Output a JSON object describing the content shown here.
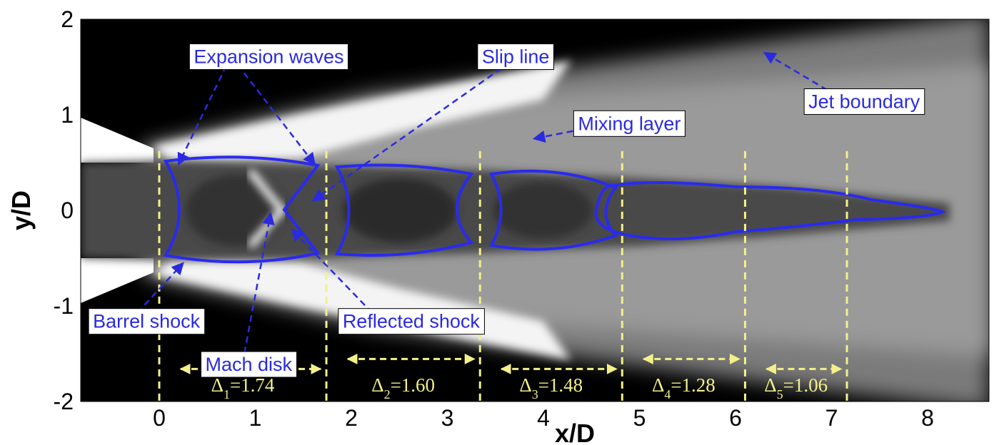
{
  "chart_data": {
    "type": "contour",
    "xlabel": "x/D",
    "ylabel": "y/D",
    "xlim": [
      -0.85,
      8.6
    ],
    "ylim": [
      -2,
      2
    ],
    "x_ticks": [
      0,
      1,
      2,
      3,
      4,
      5,
      6,
      7,
      8
    ],
    "y_ticks": [
      -2,
      -1,
      0,
      1,
      2
    ],
    "annotations": [
      {
        "label": "Expansion waves",
        "box": [
          0.3,
          1.75
        ],
        "targets": [
          [
            0.2,
            0.48
          ],
          [
            1.62,
            0.48
          ]
        ]
      },
      {
        "label": "Slip line",
        "box": [
          3.3,
          1.75
        ],
        "targets": [
          [
            1.6,
            0.1
          ]
        ]
      },
      {
        "label": "Mixing layer",
        "box": [
          4.3,
          1.05
        ],
        "targets": [
          [
            3.9,
            0.75
          ]
        ]
      },
      {
        "label": "Jet boundary",
        "box": [
          6.7,
          1.28
        ],
        "targets": [
          [
            6.3,
            1.65
          ]
        ]
      },
      {
        "label": "Barrel shock",
        "box": [
          -0.75,
          -1.02
        ],
        "targets": [
          [
            0.25,
            -0.55
          ]
        ]
      },
      {
        "label": "Reflected shock",
        "box": [
          1.85,
          -1.02
        ],
        "targets": [
          [
            1.38,
            -0.2
          ]
        ]
      },
      {
        "label": "Mach disk",
        "box": [
          0.42,
          -1.47
        ],
        "targets": [
          [
            1.16,
            -0.03
          ]
        ]
      }
    ],
    "shock_cells": [
      {
        "label": "Δ1=1.74",
        "sub": "1",
        "value": "=1.74",
        "x_start": 0.0,
        "x_end": 1.74
      },
      {
        "label": "Δ2=1.60",
        "sub": "2",
        "value": "=1.60",
        "x_start": 1.74,
        "x_end": 3.34
      },
      {
        "label": "Δ3=1.48",
        "sub": "3",
        "value": "=1.48",
        "x_start": 3.34,
        "x_end": 4.82
      },
      {
        "label": "Δ4=1.28",
        "sub": "4",
        "value": "=1.28",
        "x_start": 4.82,
        "x_end": 6.1
      },
      {
        "label": "Δ5=1.06",
        "sub": "5",
        "value": "=1.06",
        "x_start": 6.1,
        "x_end": 7.16
      }
    ],
    "colors": {
      "background": "#000000",
      "annotation": "#2a2ae0",
      "shock_outline": "#2a2af0",
      "measure": "#f3f08a"
    }
  }
}
